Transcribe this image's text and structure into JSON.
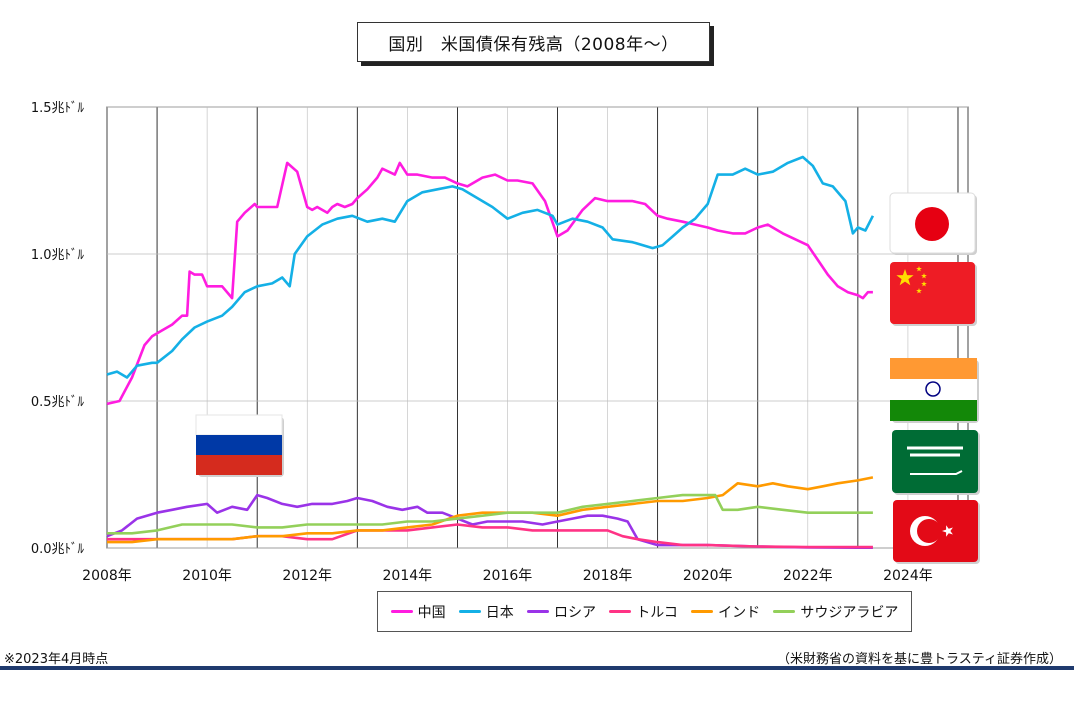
{
  "title": "国別　米国債保有残高（2008年～）",
  "footnote": "※2023年4月時点",
  "source": "（米財務省の資料を基に豊トラスティ証券作成）",
  "chart_data": {
    "type": "line",
    "title": "国別　米国債保有残高（2008年～）",
    "x_range": [
      2008,
      2025.2
    ],
    "ylim": [
      0,
      1.5
    ],
    "y_ticks": [
      0,
      0.5,
      1.0,
      1.5
    ],
    "y_tick_labels": [
      "0.0兆ﾄﾞﾙ",
      "0.5兆ﾄﾞﾙ",
      "1.0兆ﾄﾞﾙ",
      "1.5兆ﾄﾞﾙ"
    ],
    "x_ticks": [
      2008,
      2010,
      2012,
      2014,
      2016,
      2018,
      2020,
      2022,
      2024
    ],
    "x_tick_labels": [
      "2008年",
      "2010年",
      "2012年",
      "2014年",
      "2016年",
      "2018年",
      "2020年",
      "2022年",
      "2024年"
    ],
    "grid": "vertical-and-horizontal",
    "legend_position": "bottom",
    "series": [
      {
        "name": "中国",
        "color": "#ff1ce0",
        "x": [
          2008,
          2008.25,
          2008.5,
          2008.75,
          2008.9,
          2009.1,
          2009.3,
          2009.5,
          2009.6,
          2009.65,
          2009.75,
          2009.9,
          2010.0,
          2010.3,
          2010.5,
          2010.6,
          2010.75,
          2010.95,
          2011.0,
          2011.2,
          2011.4,
          2011.6,
          2011.8,
          2012.0,
          2012.1,
          2012.2,
          2012.4,
          2012.5,
          2012.6,
          2012.75,
          2012.9,
          2013.0,
          2013.2,
          2013.4,
          2013.5,
          2013.75,
          2013.85,
          2014.0,
          2014.2,
          2014.5,
          2014.75,
          2015.0,
          2015.2,
          2015.5,
          2015.75,
          2016.0,
          2016.2,
          2016.5,
          2016.75,
          2017.0,
          2017.2,
          2017.5,
          2017.75,
          2018.0,
          2018.2,
          2018.5,
          2018.75,
          2019.0,
          2019.2,
          2019.5,
          2019.75,
          2020.0,
          2020.2,
          2020.5,
          2020.75,
          2021.0,
          2021.2,
          2021.5,
          2021.75,
          2022.0,
          2022.2,
          2022.4,
          2022.6,
          2022.8,
          2023.0,
          2023.1,
          2023.2,
          2023.3
        ],
        "y": [
          0.49,
          0.5,
          0.58,
          0.69,
          0.72,
          0.74,
          0.76,
          0.79,
          0.79,
          0.94,
          0.93,
          0.93,
          0.89,
          0.89,
          0.85,
          1.11,
          1.14,
          1.17,
          1.16,
          1.16,
          1.16,
          1.31,
          1.28,
          1.16,
          1.15,
          1.16,
          1.14,
          1.16,
          1.17,
          1.16,
          1.17,
          1.19,
          1.22,
          1.26,
          1.29,
          1.27,
          1.31,
          1.27,
          1.27,
          1.26,
          1.26,
          1.24,
          1.23,
          1.26,
          1.27,
          1.25,
          1.25,
          1.24,
          1.18,
          1.06,
          1.08,
          1.15,
          1.19,
          1.18,
          1.18,
          1.18,
          1.17,
          1.13,
          1.12,
          1.11,
          1.1,
          1.09,
          1.08,
          1.07,
          1.07,
          1.09,
          1.1,
          1.07,
          1.05,
          1.03,
          0.98,
          0.93,
          0.89,
          0.87,
          0.86,
          0.85,
          0.87,
          0.87
        ]
      },
      {
        "name": "日本",
        "color": "#14b0e6",
        "x": [
          2008,
          2008.2,
          2008.4,
          2008.6,
          2008.9,
          2009.0,
          2009.3,
          2009.5,
          2009.75,
          2010.0,
          2010.3,
          2010.5,
          2010.75,
          2011.0,
          2011.3,
          2011.5,
          2011.65,
          2011.75,
          2012.0,
          2012.3,
          2012.6,
          2012.9,
          2013.2,
          2013.5,
          2013.75,
          2014.0,
          2014.3,
          2014.6,
          2014.9,
          2015.1,
          2015.4,
          2015.7,
          2016.0,
          2016.3,
          2016.6,
          2016.9,
          2017.0,
          2017.3,
          2017.6,
          2017.9,
          2018.1,
          2018.5,
          2018.9,
          2019.1,
          2019.3,
          2019.5,
          2019.75,
          2020.0,
          2020.2,
          2020.5,
          2020.75,
          2021.0,
          2021.3,
          2021.6,
          2021.9,
          2022.1,
          2022.3,
          2022.5,
          2022.75,
          2022.9,
          2023.0,
          2023.15,
          2023.3
        ],
        "y": [
          0.59,
          0.6,
          0.58,
          0.62,
          0.63,
          0.63,
          0.67,
          0.71,
          0.75,
          0.77,
          0.79,
          0.82,
          0.87,
          0.89,
          0.9,
          0.92,
          0.89,
          1.0,
          1.06,
          1.1,
          1.12,
          1.13,
          1.11,
          1.12,
          1.11,
          1.18,
          1.21,
          1.22,
          1.23,
          1.22,
          1.19,
          1.16,
          1.12,
          1.14,
          1.15,
          1.13,
          1.1,
          1.12,
          1.11,
          1.09,
          1.05,
          1.04,
          1.02,
          1.03,
          1.06,
          1.09,
          1.12,
          1.17,
          1.27,
          1.27,
          1.29,
          1.27,
          1.28,
          1.31,
          1.33,
          1.3,
          1.24,
          1.23,
          1.18,
          1.07,
          1.09,
          1.08,
          1.13
        ]
      },
      {
        "name": "ロシア",
        "color": "#9a33e8",
        "x": [
          2008,
          2008.3,
          2008.6,
          2009.0,
          2009.3,
          2009.6,
          2010.0,
          2010.2,
          2010.5,
          2010.8,
          2011.0,
          2011.2,
          2011.5,
          2011.8,
          2012.1,
          2012.5,
          2012.8,
          2013.0,
          2013.3,
          2013.6,
          2013.9,
          2014.2,
          2014.4,
          2014.7,
          2015.0,
          2015.3,
          2015.6,
          2016.0,
          2016.3,
          2016.7,
          2017.0,
          2017.3,
          2017.6,
          2017.9,
          2018.2,
          2018.4,
          2018.6,
          2019.0,
          2020.0,
          2021.0,
          2022.0,
          2023.0,
          2023.3
        ],
        "y": [
          0.04,
          0.06,
          0.1,
          0.12,
          0.13,
          0.14,
          0.15,
          0.12,
          0.14,
          0.13,
          0.18,
          0.17,
          0.15,
          0.14,
          0.15,
          0.15,
          0.16,
          0.17,
          0.16,
          0.14,
          0.13,
          0.14,
          0.12,
          0.12,
          0.1,
          0.08,
          0.09,
          0.09,
          0.09,
          0.08,
          0.09,
          0.1,
          0.11,
          0.11,
          0.1,
          0.09,
          0.03,
          0.01,
          0.01,
          0.005,
          0.002,
          0.001,
          0.001
        ]
      },
      {
        "name": "トルコ",
        "color": "#ff3385",
        "x": [
          2008,
          2008.5,
          2009.0,
          2009.5,
          2010.0,
          2010.5,
          2011.0,
          2011.5,
          2012.0,
          2012.5,
          2013.0,
          2013.5,
          2014.0,
          2014.5,
          2015.0,
          2015.5,
          2016.0,
          2016.5,
          2017.0,
          2017.5,
          2018.0,
          2018.3,
          2018.6,
          2019.0,
          2019.5,
          2020.0,
          2021.0,
          2022.0,
          2023.0,
          2023.3
        ],
        "y": [
          0.03,
          0.03,
          0.03,
          0.03,
          0.03,
          0.03,
          0.04,
          0.04,
          0.03,
          0.03,
          0.06,
          0.06,
          0.06,
          0.07,
          0.08,
          0.07,
          0.07,
          0.06,
          0.06,
          0.06,
          0.06,
          0.04,
          0.03,
          0.02,
          0.01,
          0.01,
          0.005,
          0.003,
          0.003,
          0.003
        ]
      },
      {
        "name": "インド",
        "color": "#ff9a00",
        "x": [
          2008,
          2008.5,
          2009.0,
          2009.5,
          2010.0,
          2010.5,
          2011.0,
          2011.5,
          2012.0,
          2012.5,
          2013.0,
          2013.5,
          2014.0,
          2014.5,
          2015.0,
          2015.5,
          2016.0,
          2016.5,
          2017.0,
          2017.5,
          2018.0,
          2018.5,
          2019.0,
          2019.5,
          2020.0,
          2020.3,
          2020.6,
          2021.0,
          2021.3,
          2021.6,
          2022.0,
          2022.3,
          2022.6,
          2023.0,
          2023.3
        ],
        "y": [
          0.02,
          0.02,
          0.03,
          0.03,
          0.03,
          0.03,
          0.04,
          0.04,
          0.05,
          0.05,
          0.06,
          0.06,
          0.07,
          0.08,
          0.11,
          0.12,
          0.12,
          0.12,
          0.11,
          0.13,
          0.14,
          0.15,
          0.16,
          0.16,
          0.17,
          0.18,
          0.22,
          0.21,
          0.22,
          0.21,
          0.2,
          0.21,
          0.22,
          0.23,
          0.24
        ]
      },
      {
        "name": "サウジアラビア",
        "color": "#93d05a",
        "x": [
          2008,
          2008.5,
          2009.0,
          2009.5,
          2010.0,
          2010.5,
          2011.0,
          2011.5,
          2012.0,
          2012.5,
          2013.0,
          2013.5,
          2014.0,
          2014.5,
          2015.0,
          2015.5,
          2016.0,
          2016.5,
          2017.0,
          2017.5,
          2018.0,
          2018.5,
          2019.0,
          2019.5,
          2020.0,
          2020.15,
          2020.3,
          2020.6,
          2021.0,
          2021.5,
          2022.0,
          2022.5,
          2023.0,
          2023.3
        ],
        "y": [
          0.05,
          0.05,
          0.06,
          0.08,
          0.08,
          0.08,
          0.07,
          0.07,
          0.08,
          0.08,
          0.08,
          0.08,
          0.09,
          0.09,
          0.1,
          0.11,
          0.12,
          0.12,
          0.12,
          0.14,
          0.15,
          0.16,
          0.17,
          0.18,
          0.18,
          0.18,
          0.13,
          0.13,
          0.14,
          0.13,
          0.12,
          0.12,
          0.12,
          0.12
        ]
      }
    ]
  },
  "flags": [
    {
      "name": "japan-flag",
      "bg": "#ffffff",
      "circle": "#e60012"
    },
    {
      "name": "china-flag",
      "bg": "#ee1c25",
      "star": "#ffde00"
    },
    {
      "name": "india-flag",
      "top": "#ff9933",
      "mid": "#ffffff",
      "bottom": "#138808",
      "chakra": "#000080"
    },
    {
      "name": "saudi-flag",
      "bg": "#006c35"
    },
    {
      "name": "turkey-flag",
      "bg": "#e30a17"
    },
    {
      "name": "russia-flag",
      "top": "#ffffff",
      "mid": "#0039a6",
      "bottom": "#d52b1e"
    }
  ]
}
